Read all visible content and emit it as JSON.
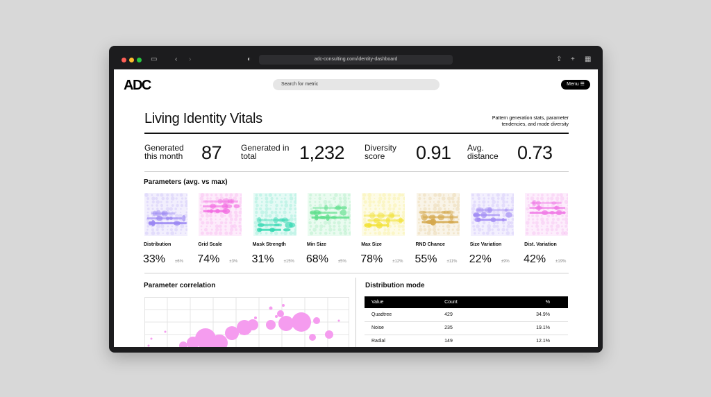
{
  "browser": {
    "url": "adc-consulting.com/identity-dashboard"
  },
  "header": {
    "logo": "ADC",
    "search_placeholder": "Search for metric",
    "menu": "Menu"
  },
  "title": "Living Identity Vitals",
  "subtitle": "Pattern generation stats, parameter tendencies, and mode diversity",
  "stats": [
    {
      "label": "Generated this month",
      "value": "87"
    },
    {
      "label": "Generated in total",
      "value": "1,232"
    },
    {
      "label": "Diversity score",
      "value": "0.91"
    },
    {
      "label": "Avg. distance",
      "value": "0.73"
    }
  ],
  "parameters": {
    "heading": "Parameters (avg. vs max)",
    "items": [
      {
        "name": "Distribution",
        "value": "33%",
        "delta": "±6%",
        "color": "#9a86f2"
      },
      {
        "name": "Grid Scale",
        "value": "74%",
        "delta": "±3%",
        "color": "#f26ee2"
      },
      {
        "name": "Mask Strength",
        "value": "31%",
        "delta": "±15%",
        "color": "#34d8b2"
      },
      {
        "name": "Min Size",
        "value": "68%",
        "delta": "±5%",
        "color": "#5edf8c"
      },
      {
        "name": "Max Size",
        "value": "78%",
        "delta": "±12%",
        "color": "#f2e23a"
      },
      {
        "name": "RND Chance",
        "value": "55%",
        "delta": "±11%",
        "color": "#d4a84c"
      },
      {
        "name": "Size Variation",
        "value": "22%",
        "delta": "±9%",
        "color": "#a28cf4"
      },
      {
        "name": "Dist. Variation",
        "value": "42%",
        "delta": "±19%",
        "color": "#f07ae6"
      }
    ]
  },
  "correlation": {
    "heading": "Parameter correlation"
  },
  "distribution_mode": {
    "heading": "Distribution mode",
    "table": {
      "header": [
        "Value",
        "Count",
        "%"
      ],
      "rows": [
        [
          "Quadtree",
          "429",
          "34.9%"
        ],
        [
          "Noise",
          "235",
          "19.1%"
        ],
        [
          "Radial",
          "149",
          "12.1%"
        ]
      ]
    }
  }
}
